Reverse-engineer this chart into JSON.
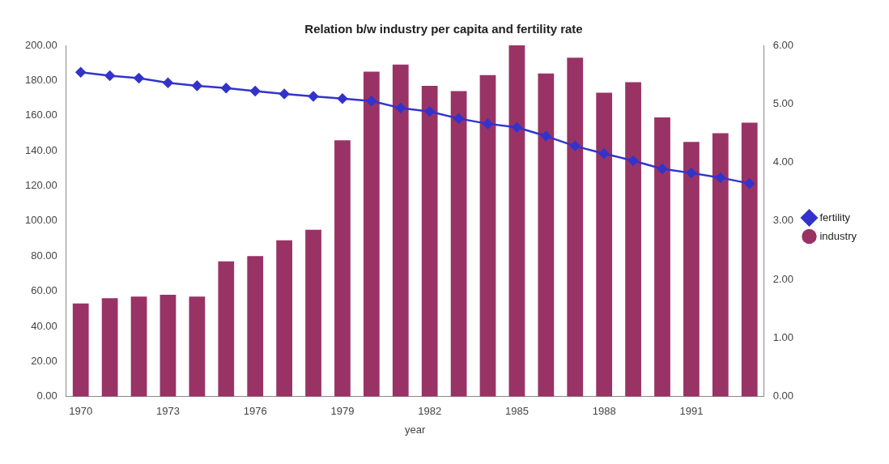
{
  "chart_data": {
    "type": "bar",
    "title": "Relation b/w industry per capita and fertility rate",
    "xlabel": "year",
    "categories": [
      "1970",
      null,
      null,
      "1973",
      null,
      null,
      "1976",
      null,
      null,
      "1979",
      null,
      null,
      "1982",
      null,
      null,
      "1985",
      null,
      null,
      "1988",
      null,
      null,
      "1991",
      null,
      null
    ],
    "series": [
      {
        "name": "industry",
        "color": "#993366",
        "values": [
          53,
          56,
          57,
          58,
          57,
          77,
          80,
          89,
          95,
          146,
          185,
          189,
          177,
          174,
          183,
          200,
          184,
          193,
          173,
          179,
          159,
          145,
          150,
          156
        ]
      },
      {
        "name": "fertility",
        "type": "line",
        "axis": "y2",
        "color": "#3333cc",
        "values": [
          5.54,
          5.48,
          5.44,
          5.36,
          5.31,
          5.27,
          5.22,
          5.17,
          5.13,
          5.09,
          5.05,
          4.93,
          4.87,
          4.75,
          4.66,
          4.6,
          4.45,
          4.28,
          4.15,
          4.03,
          3.89,
          3.82,
          3.74,
          3.64
        ]
      }
    ],
    "ylim": [
      0,
      200
    ],
    "yticks": [
      {
        "value": 0,
        "label": "0.00"
      },
      {
        "value": 20,
        "label": "20.00"
      },
      {
        "value": 40,
        "label": "40.00"
      },
      {
        "value": 60,
        "label": "60.00"
      },
      {
        "value": 80,
        "label": "80.00"
      },
      {
        "value": 100,
        "label": "100.00"
      },
      {
        "value": 120,
        "label": "120.00"
      },
      {
        "value": 140,
        "label": "140.00"
      },
      {
        "value": 160,
        "label": "160.00"
      },
      {
        "value": 180,
        "label": "180.00"
      },
      {
        "value": 200,
        "label": "200.00"
      }
    ],
    "y2lim": [
      0,
      6
    ],
    "y2ticks": [
      {
        "value": 0,
        "label": "0.00"
      },
      {
        "value": 1,
        "label": "1.00"
      },
      {
        "value": 2,
        "label": "2.00"
      },
      {
        "value": 3,
        "label": "3.00"
      },
      {
        "value": 4,
        "label": "4.00"
      },
      {
        "value": 5,
        "label": "5.00"
      },
      {
        "value": 6,
        "label": "6.00"
      }
    ],
    "grid": false,
    "legend": "right",
    "marker": "diamond",
    "line_style": "solid"
  }
}
